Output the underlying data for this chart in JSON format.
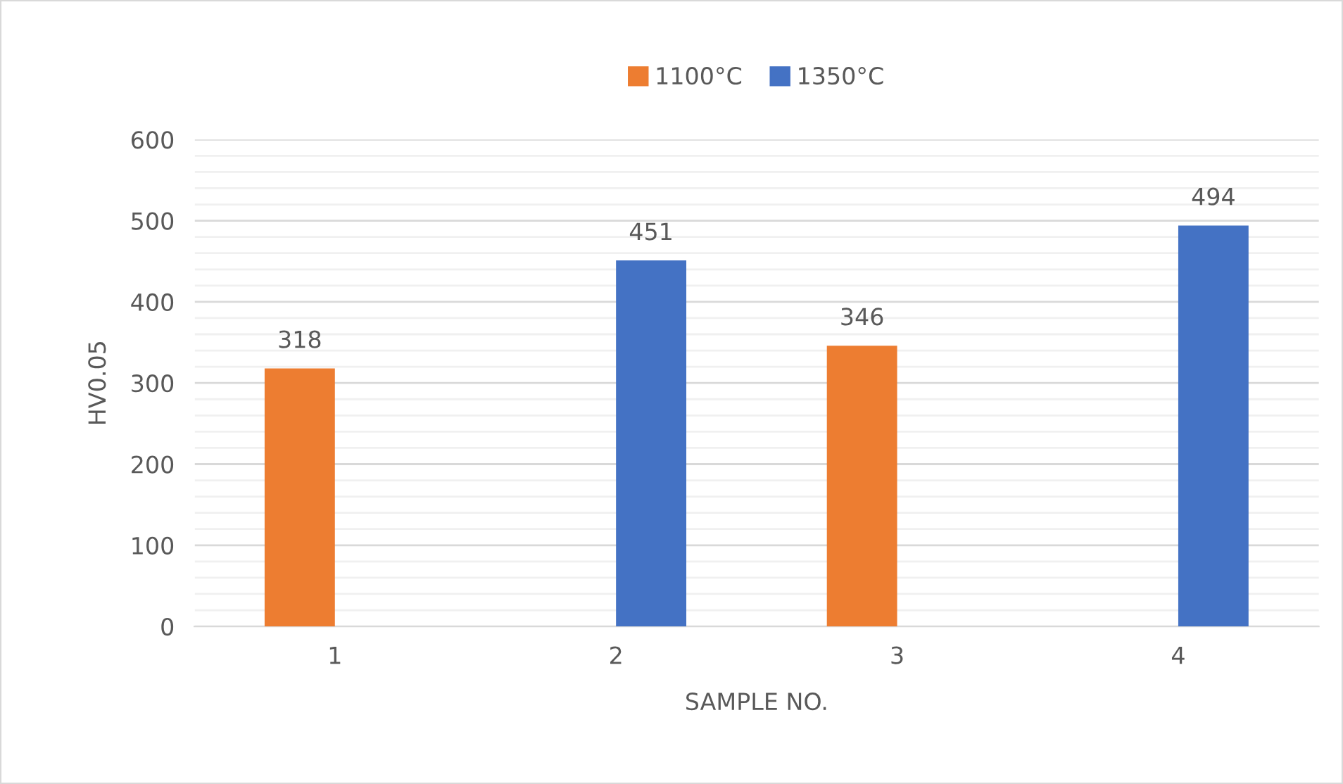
{
  "chart_data": {
    "type": "bar",
    "xlabel": "SAMPLE NO.",
    "ylabel": "HV0.05",
    "categories": [
      "1",
      "2",
      "3",
      "4"
    ],
    "series": [
      {
        "name": "1100°C",
        "color": "#ed7d31",
        "values": [
          318,
          null,
          346,
          null
        ]
      },
      {
        "name": "1350°C",
        "color": "#4472c4",
        "values": [
          null,
          451,
          null,
          494
        ]
      }
    ],
    "ylim": [
      0,
      600
    ],
    "yticks": [
      0,
      100,
      200,
      300,
      400,
      500,
      600
    ],
    "grid": "y",
    "legend": "top",
    "data_labels": true
  }
}
